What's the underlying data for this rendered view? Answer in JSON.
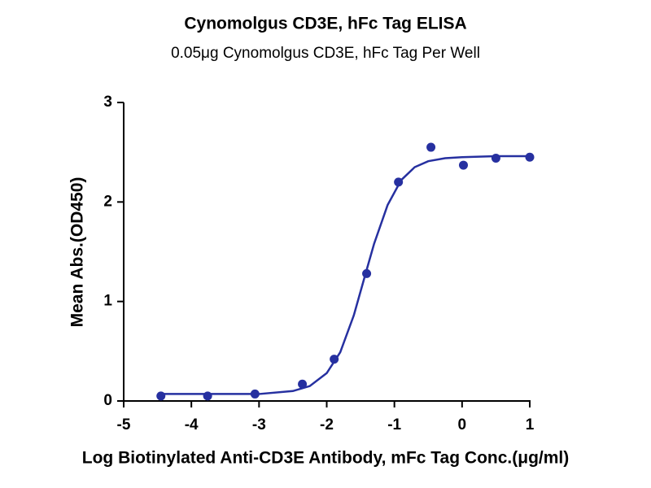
{
  "chart_data": {
    "type": "scatter",
    "title": "Cynomolgus CD3E, hFc Tag ELISA",
    "subtitle": "0.05μg Cynomolgus CD3E, hFc Tag Per Well",
    "x_label": "Log Biotinylated Anti-CD3E Antibody, mFc Tag Conc.(μg/ml)",
    "y_label": "Mean Abs.(OD450)",
    "color": "#2630a0",
    "points": {
      "x": [
        -4.45,
        -3.76,
        -3.06,
        -2.36,
        -1.89,
        -1.41,
        -0.94,
        -0.46,
        0.02,
        0.5,
        1.0
      ],
      "values": [
        0.05,
        0.05,
        0.07,
        0.17,
        0.42,
        1.28,
        2.2,
        2.55,
        2.37,
        2.44,
        2.45
      ]
    },
    "fit": {
      "x": [
        -4.45,
        -3.5,
        -3.0,
        -2.5,
        -2.25,
        -2.0,
        -1.8,
        -1.6,
        -1.43,
        -1.3,
        -1.1,
        -0.9,
        -0.7,
        -0.5,
        -0.25,
        0,
        0.5,
        1.0
      ],
      "values": [
        0.07,
        0.07,
        0.07,
        0.1,
        0.15,
        0.28,
        0.49,
        0.86,
        1.27,
        1.58,
        1.97,
        2.22,
        2.35,
        2.41,
        2.44,
        2.45,
        2.46,
        2.46
      ]
    },
    "xlim": [
      -5,
      1
    ],
    "xticks": [
      -5,
      -4,
      -3,
      -2,
      -1,
      0,
      1
    ],
    "ylim": [
      0,
      3
    ],
    "yticks": [
      0,
      1,
      2,
      3
    ],
    "grid": false
  }
}
